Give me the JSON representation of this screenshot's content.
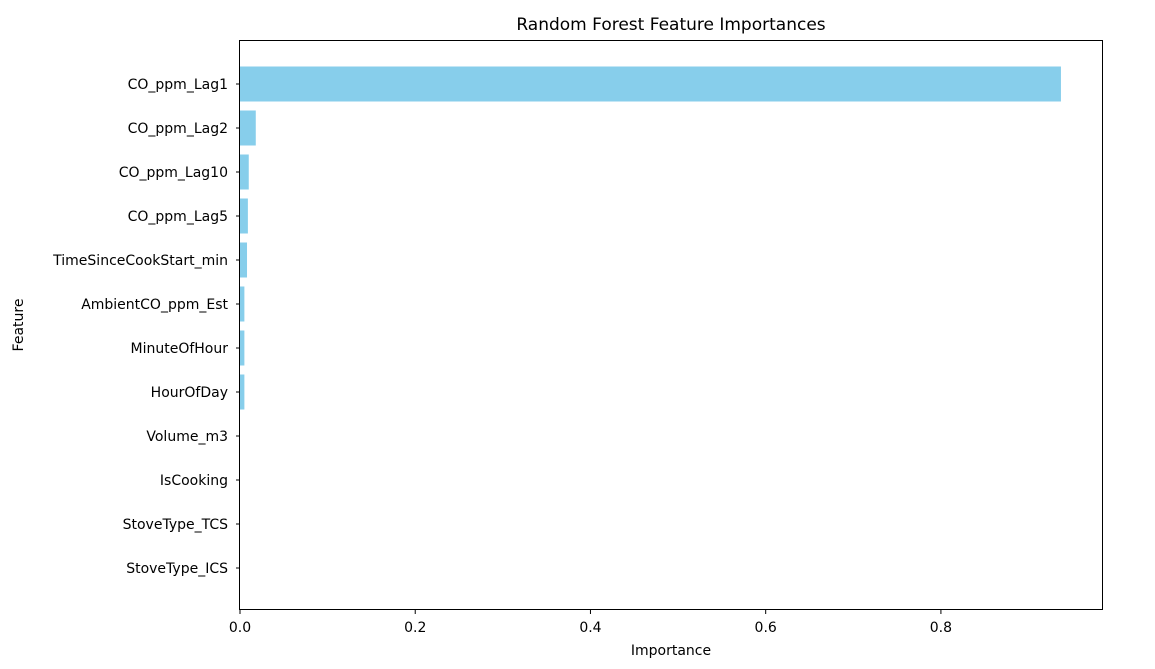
{
  "chart_data": {
    "type": "bar",
    "orientation": "horizontal",
    "title": "Random Forest Feature Importances",
    "xlabel": "Importance",
    "ylabel": "Feature",
    "xlim": [
      0,
      0.985
    ],
    "x_ticks": [
      "0.0",
      "0.2",
      "0.4",
      "0.6",
      "0.8"
    ],
    "x_tick_values": [
      0.0,
      0.2,
      0.4,
      0.6,
      0.8
    ],
    "grid": false,
    "bar_color": "#87CEEB",
    "categories": [
      "CO_ppm_Lag1",
      "CO_ppm_Lag2",
      "CO_ppm_Lag10",
      "CO_ppm_Lag5",
      "TimeSinceCookStart_min",
      "AmbientCO_ppm_Est",
      "MinuteOfHour",
      "HourOfDay",
      "Volume_m3",
      "IsCooking",
      "StoveType_TCS",
      "StoveType_ICS"
    ],
    "values": [
      0.937,
      0.018,
      0.01,
      0.009,
      0.008,
      0.005,
      0.005,
      0.005,
      0.0,
      0.0,
      0.0,
      0.0
    ]
  }
}
